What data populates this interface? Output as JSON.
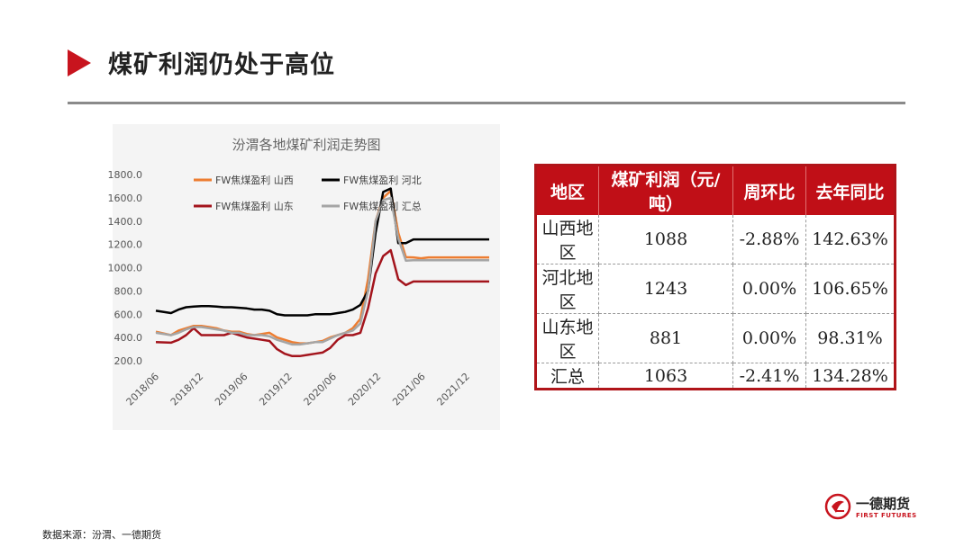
{
  "page": {
    "title": "煤矿利润仍处于高位",
    "source": "数据来源：汾渭、一德期货",
    "brand": {
      "name": "一德期货",
      "sub": "FIRST FUTURES"
    }
  },
  "colors": {
    "accent": "#c8141e",
    "table_header": "#c00f17",
    "series_shanxi": "#ed7d31",
    "series_hebei": "#000000",
    "series_shandong": "#a3141c",
    "series_total": "#a5a5a5"
  },
  "chart_data": {
    "type": "line",
    "title": "汾渭各地煤矿利润走势图",
    "xlabel": "",
    "ylabel": "",
    "ylim": [
      200,
      1800
    ],
    "yticks": [
      "1800.0",
      "1600.0",
      "1400.0",
      "1200.0",
      "1000.0",
      "800.0",
      "600.0",
      "400.0",
      "200.0"
    ],
    "xticks": [
      "2018/06",
      "2018/12",
      "2019/06",
      "2019/12",
      "2020/06",
      "2020/12",
      "2021/06",
      "2021/12"
    ],
    "xrange": [
      0,
      44
    ],
    "legend_position": "top",
    "grid": false,
    "x": [
      0,
      2,
      3,
      4,
      5,
      6,
      7,
      8,
      9,
      10,
      11,
      12,
      13,
      14,
      15,
      16,
      17,
      18,
      19,
      20,
      21,
      22,
      23,
      24,
      25,
      26,
      27,
      28,
      29,
      30,
      31,
      32,
      33,
      34,
      35,
      36,
      37,
      38,
      39,
      40,
      41,
      42,
      43,
      44
    ],
    "series": [
      {
        "name": "FW焦煤盈利 山西",
        "values": [
          450,
          420,
          460,
          480,
          500,
          500,
          490,
          480,
          460,
          450,
          450,
          430,
          420,
          430,
          440,
          400,
          380,
          360,
          350,
          350,
          360,
          370,
          400,
          420,
          440,
          480,
          560,
          900,
          1400,
          1600,
          1660,
          1300,
          1090,
          1088,
          1080,
          1088,
          1088,
          1088,
          1088,
          1088,
          1088,
          1088,
          1088,
          1088
        ]
      },
      {
        "name": "FW焦煤盈利 河北",
        "values": [
          630,
          610,
          640,
          660,
          665,
          670,
          670,
          665,
          660,
          660,
          655,
          650,
          640,
          640,
          630,
          600,
          590,
          590,
          590,
          590,
          600,
          600,
          600,
          610,
          620,
          640,
          680,
          800,
          1300,
          1650,
          1680,
          1210,
          1210,
          1243,
          1243,
          1243,
          1243,
          1243,
          1243,
          1243,
          1243,
          1243,
          1243,
          1243
        ]
      },
      {
        "name": "FW焦煤盈利 山东",
        "values": [
          360,
          355,
          380,
          420,
          480,
          420,
          420,
          420,
          420,
          440,
          420,
          400,
          390,
          380,
          370,
          300,
          260,
          240,
          240,
          250,
          260,
          270,
          310,
          380,
          420,
          420,
          440,
          650,
          950,
          1100,
          1150,
          900,
          850,
          881,
          881,
          881,
          881,
          881,
          881,
          881,
          881,
          881,
          881,
          881
        ]
      },
      {
        "name": "FW焦煤盈利 汇总",
        "values": [
          440,
          420,
          440,
          470,
          490,
          490,
          480,
          470,
          460,
          440,
          440,
          420,
          420,
          420,
          410,
          380,
          360,
          340,
          340,
          350,
          360,
          360,
          390,
          420,
          440,
          460,
          520,
          800,
          1400,
          1580,
          1600,
          1250,
          1060,
          1063,
          1063,
          1063,
          1063,
          1063,
          1063,
          1063,
          1063,
          1063,
          1063,
          1063
        ]
      }
    ]
  },
  "table": {
    "headers": [
      "地区",
      "煤矿利润（元/吨）",
      "周环比",
      "去年同比"
    ],
    "rows": [
      [
        "山西地区",
        "1088",
        "-2.88%",
        "142.63%"
      ],
      [
        "河北地区",
        "1243",
        "0.00%",
        "106.65%"
      ],
      [
        "山东地区",
        "881",
        "0.00%",
        "98.31%"
      ],
      [
        "汇总",
        "1063",
        "-2.41%",
        "134.28%"
      ]
    ]
  }
}
